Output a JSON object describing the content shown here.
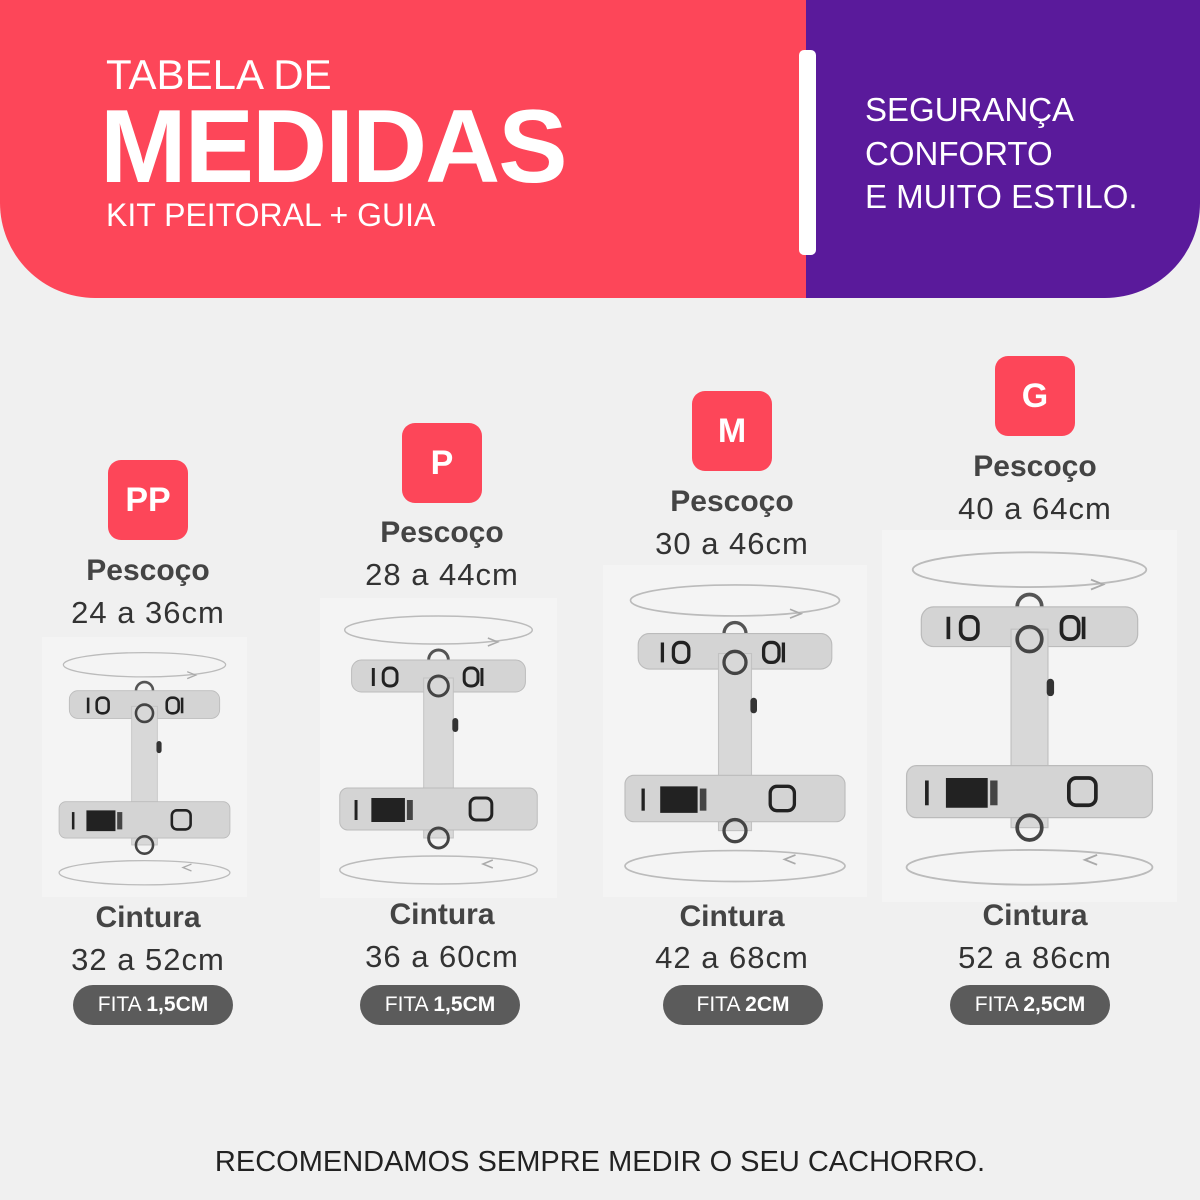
{
  "header": {
    "title_small": "TABELA DE",
    "title_big": "MEDIDAS",
    "subtitle": "KIT PEITORAL + GUIA",
    "slogan": [
      "SEGURANÇA",
      "CONFORTO",
      "E MUITO ESTILO."
    ]
  },
  "colors": {
    "accent": "#fd4659",
    "purple": "#5a1a9b",
    "pill": "#5b5b5b",
    "background": "#f0f0f0"
  },
  "sizes": [
    {
      "size": "PP",
      "neck_label": "Pescoço",
      "neck": "24 a 36cm",
      "waist_label": "Cintura",
      "waist": "32 a 52cm",
      "strap_prefix": "FITA",
      "strap": "1,5CM"
    },
    {
      "size": "P",
      "neck_label": "Pescoço",
      "neck": "28 a 44cm",
      "waist_label": "Cintura",
      "waist": "36 a 60cm",
      "strap_prefix": "FITA",
      "strap": "1,5CM"
    },
    {
      "size": "M",
      "neck_label": "Pescoço",
      "neck": "30 a 46cm",
      "waist_label": "Cintura",
      "waist": "42 a 68cm",
      "strap_prefix": "FITA",
      "strap": "2CM"
    },
    {
      "size": "G",
      "neck_label": "Pescoço",
      "neck": "40 a 64cm",
      "waist_label": "Cintura",
      "waist": "52 a 86cm",
      "strap_prefix": "FITA",
      "strap": "2,5CM"
    }
  ],
  "footer": "RECOMENDAMOS SEMPRE MEDIR O SEU CACHORRO."
}
